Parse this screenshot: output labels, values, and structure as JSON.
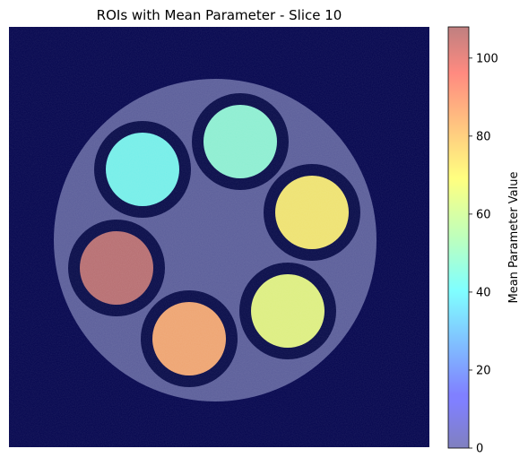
{
  "chart_data": {
    "type": "heatmap",
    "title": "ROIs with Mean Parameter - Slice 10",
    "xlabel": "",
    "ylabel": "",
    "axes_visible": false,
    "background": "phantom image: dark navy field with a lighter circular phantom",
    "colormap": "jet",
    "colormap_alpha": 0.5,
    "colorbar": {
      "label": "Mean Parameter Value",
      "range": [
        0,
        108
      ],
      "ticks": [
        0,
        20,
        40,
        60,
        80,
        100
      ],
      "tick_labels": [
        "0",
        "20",
        "40",
        "60",
        "80",
        "100"
      ],
      "placement": "right"
    },
    "rois": [
      {
        "id": "roi-top",
        "value": 47
      },
      {
        "id": "roi-upper-left",
        "value": 42
      },
      {
        "id": "roi-right",
        "value": 70
      },
      {
        "id": "roi-left",
        "value": 106
      },
      {
        "id": "roi-lower-right",
        "value": 64
      },
      {
        "id": "roi-bottom",
        "value": 83
      }
    ]
  },
  "colors": {
    "background_field": "#03044d",
    "phantom": "#5a5d99",
    "roi_ring": "#060a48"
  }
}
